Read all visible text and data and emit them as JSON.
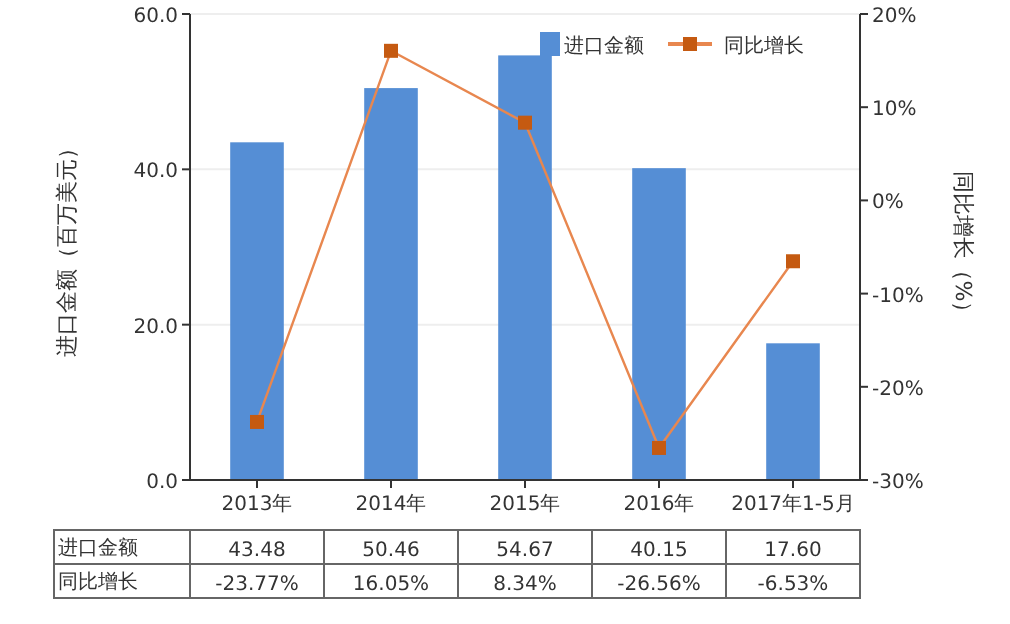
{
  "chart_data": {
    "type": "bar",
    "categories": [
      "2013年",
      "2014年",
      "2015年",
      "2016年",
      "2017年1-5月"
    ],
    "series": [
      {
        "name": "进口金额",
        "color": "#558ed5",
        "values": [
          43.48,
          50.46,
          54.67,
          40.15,
          17.6
        ],
        "value_labels": [
          "43.48",
          "50.46",
          "54.67",
          "40.15",
          "17.60"
        ]
      },
      {
        "name": "同比增长",
        "type": "line",
        "axis": "y2",
        "color": "#e8874f",
        "marker": "square",
        "values": [
          -23.77,
          16.05,
          8.34,
          -26.56,
          -6.53
        ],
        "value_labels": [
          "-23.77%",
          "16.05%",
          "8.34%",
          "-26.56%",
          "-6.53%"
        ]
      }
    ],
    "ylabel": "进口金额（百万美元）",
    "y2label": "同比增长（%）",
    "ylim": [
      0,
      60
    ],
    "yticks": [
      {
        "value": 0,
        "label": "0.0"
      },
      {
        "value": 20,
        "label": "20.0"
      },
      {
        "value": 40,
        "label": "40.0"
      },
      {
        "value": 60,
        "label": "60.0"
      }
    ],
    "y2lim": [
      -30,
      20
    ],
    "y2ticks": [
      {
        "value": -30,
        "label": "-30%"
      },
      {
        "value": -20,
        "label": "-20%"
      },
      {
        "value": -10,
        "label": "-10%"
      },
      {
        "value": 0,
        "label": "0%"
      },
      {
        "value": 10,
        "label": "10%"
      },
      {
        "value": 20,
        "label": "20%"
      }
    ],
    "grid": "y",
    "legend": "top right"
  }
}
